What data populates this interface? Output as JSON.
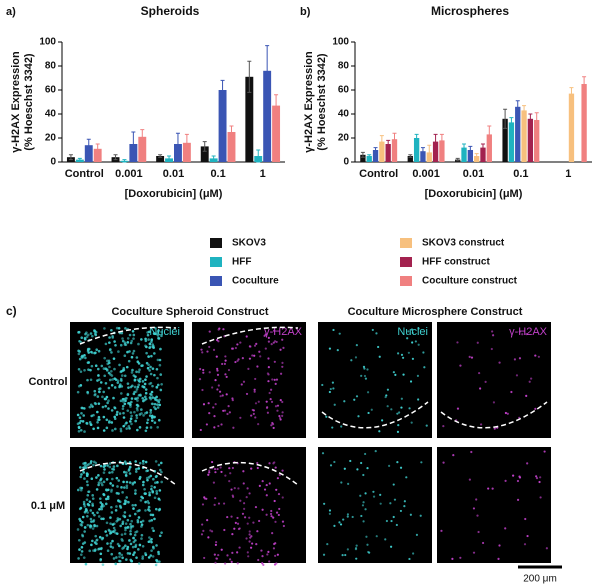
{
  "chart_data": [
    {
      "type": "bar",
      "panel_label": "a)",
      "title": "Spheroids",
      "ylabel": [
        "γ-H2AX Expression",
        "(% Hoeschst 3342)"
      ],
      "xlabel": "[Doxorubicin] (μM)",
      "categories": [
        "Control",
        "0.001",
        "0.01",
        "0.1",
        "1"
      ],
      "ylim": [
        0,
        100
      ],
      "yticks": [
        0,
        20,
        40,
        60,
        80,
        100
      ],
      "series": [
        {
          "name": "SKOV3",
          "color": "#111111",
          "values": [
            4,
            4,
            5,
            13,
            71
          ],
          "errors": [
            2,
            2,
            1,
            4,
            13
          ]
        },
        {
          "name": "HFF",
          "color": "#1fb3c0",
          "values": [
            2,
            1,
            3,
            3,
            5
          ],
          "errors": [
            1,
            1,
            2,
            2,
            5
          ]
        },
        {
          "name": "Coculture",
          "color": "#3a55b4",
          "values": [
            14,
            15,
            15,
            60,
            76
          ],
          "errors": [
            5,
            10,
            9,
            8,
            21
          ]
        },
        {
          "name": "Coculture construct",
          "color": "#f08080",
          "values": [
            11,
            21,
            16,
            25,
            47
          ],
          "errors": [
            4,
            6,
            7,
            5,
            9
          ]
        }
      ]
    },
    {
      "type": "bar",
      "panel_label": "b)",
      "title": "Microspheres",
      "ylabel": [
        "γ-H2AX Expression",
        "(% Hoeschst 3342)"
      ],
      "xlabel": "[Doxorubicin] (μM)",
      "categories": [
        "Control",
        "0.001",
        "0.01",
        "0.1",
        "1"
      ],
      "ylim": [
        0,
        100
      ],
      "yticks": [
        0,
        20,
        40,
        60,
        80,
        100
      ],
      "series": [
        {
          "name": "SKOV3",
          "color": "#111111",
          "values": [
            6,
            5,
            2,
            36,
            null
          ],
          "errors": [
            2,
            1,
            1,
            8,
            null
          ]
        },
        {
          "name": "HFF",
          "color": "#1fb3c0",
          "values": [
            5,
            20,
            12,
            33,
            null
          ],
          "errors": [
            1,
            3,
            3,
            4,
            null
          ]
        },
        {
          "name": "Coculture",
          "color": "#3a55b4",
          "values": [
            10,
            9,
            10,
            46,
            null
          ],
          "errors": [
            2,
            3,
            3,
            5,
            null
          ]
        },
        {
          "name": "SKOV3 construct",
          "color": "#f7c07e",
          "values": [
            17,
            8,
            5,
            43,
            57
          ],
          "errors": [
            5,
            6,
            2,
            4,
            5
          ]
        },
        {
          "name": "HFF construct",
          "color": "#a3224f",
          "values": [
            15,
            17,
            12,
            36,
            null
          ],
          "errors": [
            3,
            6,
            3,
            4,
            null
          ]
        },
        {
          "name": "Coculture construct",
          "color": "#f08080",
          "values": [
            19,
            18,
            23,
            35,
            65
          ],
          "errors": [
            5,
            5,
            7,
            6,
            6
          ]
        }
      ]
    }
  ],
  "panel_c": {
    "label": "c)",
    "columns": [
      "Coculture Spheroid Construct",
      "Coculture Microsphere Construct"
    ],
    "rows": [
      "Control",
      "0.1 μM"
    ],
    "channels": [
      "Nuclei",
      "γ-H2AX"
    ],
    "scale_bar": "200 μm"
  }
}
